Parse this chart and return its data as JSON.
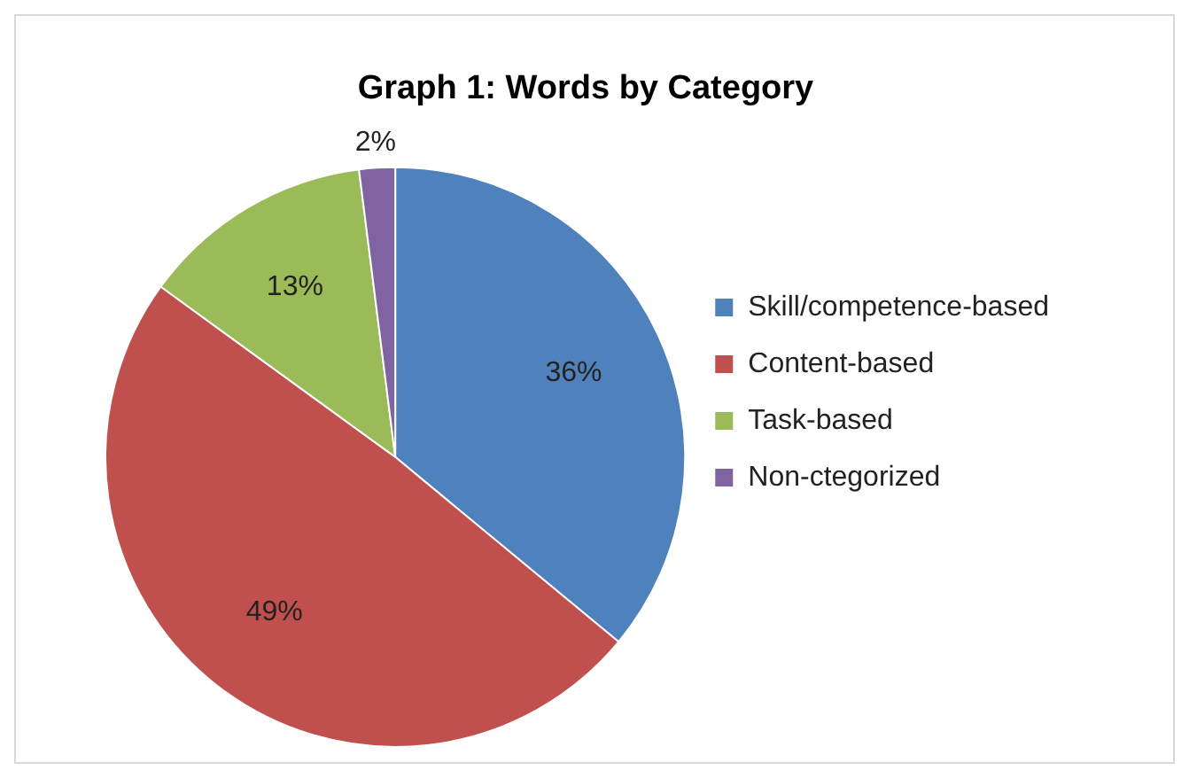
{
  "chart_data": {
    "type": "pie",
    "title": "Graph 1: Words by Category",
    "categories": [
      "Skill/competence-based",
      "Content-based",
      "Task-based",
      "Non-ctegorized"
    ],
    "values": [
      36,
      49,
      13,
      2
    ],
    "colors": [
      "#4f81bd",
      "#c0504d",
      "#9bbb59",
      "#8064a2"
    ],
    "value_labels": [
      "36%",
      "49%",
      "13%",
      "2%"
    ],
    "legend": "right"
  }
}
